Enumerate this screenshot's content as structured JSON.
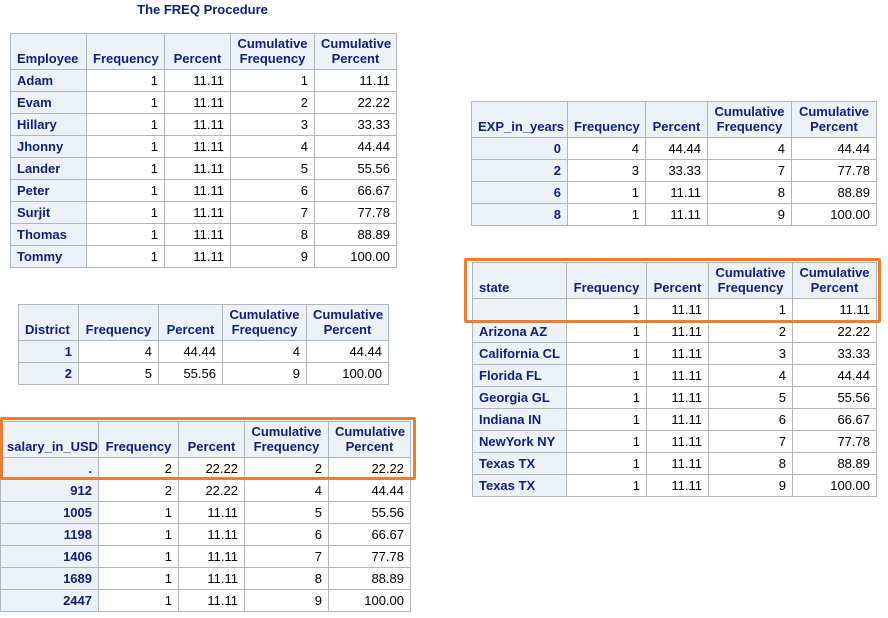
{
  "title": "The FREQ Procedure",
  "headers": {
    "frequency": "Frequency",
    "percent": "Percent",
    "cum_freq_1": "Cumulative",
    "cum_freq_2": "Frequency",
    "cum_pct_1": "Cumulative",
    "cum_pct_2": "Percent"
  },
  "tables": {
    "employee": {
      "key_label": "Employee",
      "rows": [
        [
          "Adam",
          "1",
          "11.11",
          "1",
          "11.11"
        ],
        [
          "Evam",
          "1",
          "11.11",
          "2",
          "22.22"
        ],
        [
          "Hillary",
          "1",
          "11.11",
          "3",
          "33.33"
        ],
        [
          "Jhonny",
          "1",
          "11.11",
          "4",
          "44.44"
        ],
        [
          "Lander",
          "1",
          "11.11",
          "5",
          "55.56"
        ],
        [
          "Peter",
          "1",
          "11.11",
          "6",
          "66.67"
        ],
        [
          "Surjit",
          "1",
          "11.11",
          "7",
          "77.78"
        ],
        [
          "Thomas",
          "1",
          "11.11",
          "8",
          "88.89"
        ],
        [
          "Tommy",
          "1",
          "11.11",
          "9",
          "100.00"
        ]
      ]
    },
    "district": {
      "key_label": "District",
      "rows": [
        [
          "1",
          "4",
          "44.44",
          "4",
          "44.44"
        ],
        [
          "2",
          "5",
          "55.56",
          "9",
          "100.00"
        ]
      ]
    },
    "salary": {
      "key_label": "salary_in_USD",
      "rows": [
        [
          ".",
          "2",
          "22.22",
          "2",
          "22.22"
        ],
        [
          "912",
          "2",
          "22.22",
          "4",
          "44.44"
        ],
        [
          "1005",
          "1",
          "11.11",
          "5",
          "55.56"
        ],
        [
          "1198",
          "1",
          "11.11",
          "6",
          "66.67"
        ],
        [
          "1406",
          "1",
          "11.11",
          "7",
          "77.78"
        ],
        [
          "1689",
          "1",
          "11.11",
          "8",
          "88.89"
        ],
        [
          "2447",
          "1",
          "11.11",
          "9",
          "100.00"
        ]
      ]
    },
    "exp": {
      "key_label": "EXP_in_years",
      "rows": [
        [
          "0",
          "4",
          "44.44",
          "4",
          "44.44"
        ],
        [
          "2",
          "3",
          "33.33",
          "7",
          "77.78"
        ],
        [
          "6",
          "1",
          "11.11",
          "8",
          "88.89"
        ],
        [
          "8",
          "1",
          "11.11",
          "9",
          "100.00"
        ]
      ]
    },
    "state": {
      "key_label": "state",
      "rows": [
        [
          "",
          "1",
          "11.11",
          "1",
          "11.11"
        ],
        [
          "Arizona AZ",
          "1",
          "11.11",
          "2",
          "22.22"
        ],
        [
          "California CL",
          "1",
          "11.11",
          "3",
          "33.33"
        ],
        [
          "Florida FL",
          "1",
          "11.11",
          "4",
          "44.44"
        ],
        [
          "Georgia GL",
          "1",
          "11.11",
          "5",
          "55.56"
        ],
        [
          "Indiana IN",
          "1",
          "11.11",
          "6",
          "66.67"
        ],
        [
          "NewYork NY",
          "1",
          "11.11",
          "7",
          "77.78"
        ],
        [
          "Texas TX",
          "1",
          "11.11",
          "8",
          "88.89"
        ],
        [
          "Texas TX",
          "1",
          "11.11",
          "9",
          "100.00"
        ]
      ]
    }
  },
  "colors": {
    "header_bg": "#edf2f9",
    "header_text": "#112277",
    "border": "#b0b7bb",
    "highlight": "#ed7d31"
  }
}
